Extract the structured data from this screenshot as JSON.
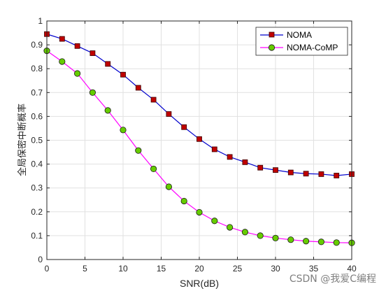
{
  "watermark": "CSDN @我爱C编程",
  "chart_data": {
    "type": "line",
    "title": "",
    "xlabel": "SNR(dB)",
    "ylabel": "全局保密中断概率",
    "xlim": [
      0,
      40
    ],
    "ylim": [
      0,
      1
    ],
    "xticks": [
      0,
      5,
      10,
      15,
      20,
      25,
      30,
      35,
      40
    ],
    "yticks": [
      0,
      0.1,
      0.2,
      0.3,
      0.4,
      0.5,
      0.6,
      0.7,
      0.8,
      0.9,
      1
    ],
    "yticklabels": [
      "0",
      "0.1",
      "0.2",
      "0.3",
      "0.4",
      "0.5",
      "0.6",
      "0.7",
      "0.8",
      "0.9",
      "1"
    ],
    "grid": true,
    "legend_position": "top-right",
    "x": [
      0,
      2,
      4,
      6,
      8,
      10,
      12,
      14,
      16,
      18,
      20,
      22,
      24,
      26,
      28,
      30,
      32,
      34,
      36,
      38,
      40
    ],
    "series": [
      {
        "name": "NOMA",
        "color": "#0000cc",
        "marker": "square",
        "marker_color": "#c00000",
        "values": [
          0.945,
          0.925,
          0.895,
          0.865,
          0.82,
          0.775,
          0.72,
          0.67,
          0.61,
          0.555,
          0.505,
          0.462,
          0.43,
          0.408,
          0.385,
          0.375,
          0.365,
          0.36,
          0.358,
          0.352,
          0.358
        ]
      },
      {
        "name": "NOMA-CoMP",
        "color": "#ff00ff",
        "marker": "circle",
        "marker_color": "#66cc00",
        "values": [
          0.875,
          0.83,
          0.78,
          0.7,
          0.625,
          0.543,
          0.457,
          0.38,
          0.305,
          0.245,
          0.198,
          0.162,
          0.135,
          0.115,
          0.1,
          0.09,
          0.083,
          0.077,
          0.074,
          0.071,
          0.07
        ]
      }
    ]
  }
}
